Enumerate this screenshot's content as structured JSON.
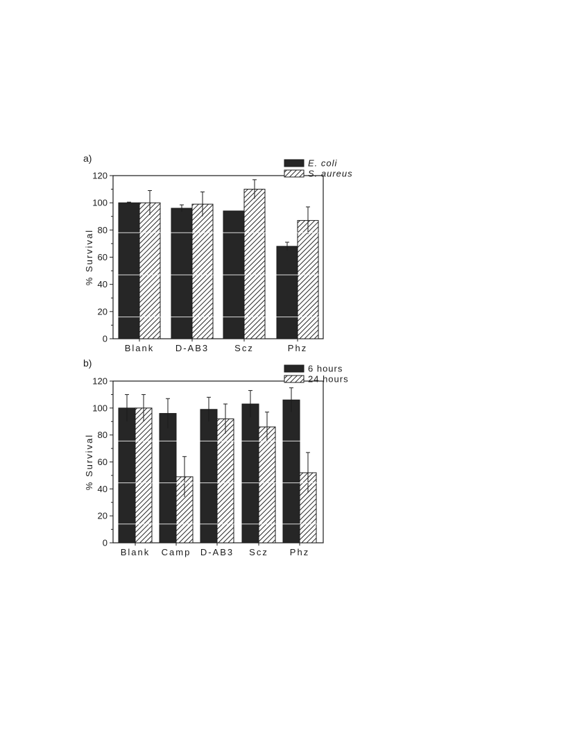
{
  "chart_data": [
    {
      "type": "bar",
      "panel_label": "a)",
      "ylabel": "% Survival",
      "ylim": [
        0,
        120
      ],
      "yticks": [
        0,
        20,
        40,
        60,
        80,
        100,
        120
      ],
      "categories": [
        "Blank",
        "D-AB3",
        "Scz",
        "Phz"
      ],
      "legend_placement": "top-right",
      "series": [
        {
          "name": "E. coli",
          "fill": "solid",
          "color": "#262626",
          "values": [
            100,
            96,
            94,
            68
          ],
          "errors": [
            0.5,
            2.5,
            0,
            3
          ]
        },
        {
          "name": "S. aureus",
          "fill": "hatched",
          "color": "#262626",
          "values": [
            100,
            99,
            110,
            87
          ],
          "errors": [
            9,
            9,
            7,
            10
          ]
        }
      ]
    },
    {
      "type": "bar",
      "panel_label": "b)",
      "ylabel": "% Survival",
      "ylim": [
        0,
        120
      ],
      "yticks": [
        0,
        20,
        40,
        60,
        80,
        100,
        120
      ],
      "categories": [
        "Blank",
        "Camp",
        "D-AB3",
        "Scz",
        "Phz"
      ],
      "legend_placement": "top-right",
      "series": [
        {
          "name": "6 hours",
          "fill": "solid",
          "color": "#262626",
          "values": [
            100,
            96,
            99,
            103,
            106
          ],
          "errors": [
            10,
            11,
            9,
            10,
            9
          ]
        },
        {
          "name": "24 hours",
          "fill": "hatched",
          "color": "#262626",
          "values": [
            100,
            49,
            92,
            86,
            52
          ],
          "errors": [
            10,
            15,
            11,
            11,
            15
          ]
        }
      ]
    }
  ]
}
